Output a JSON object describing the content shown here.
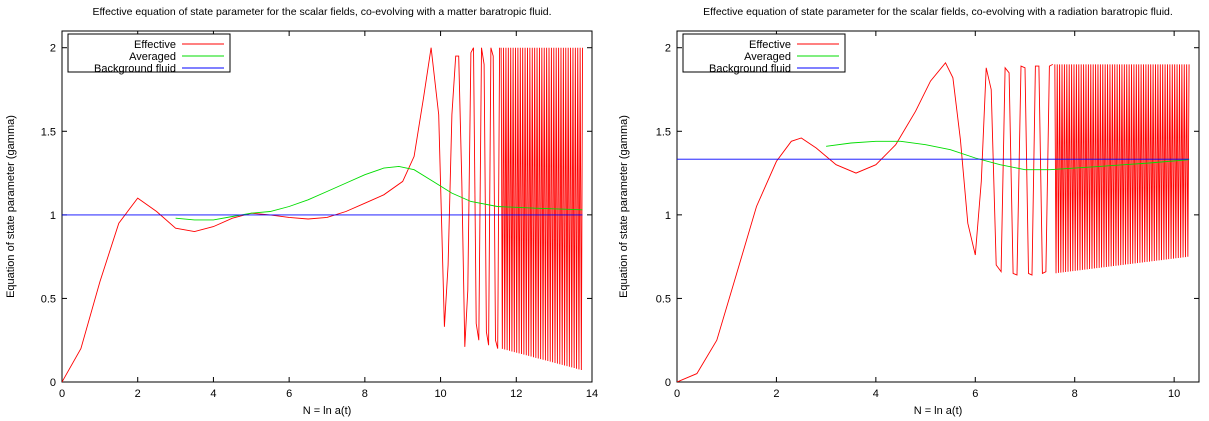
{
  "figure": {
    "panels": [
      {
        "chart_data": {
          "type": "line",
          "title": "Effective equation of state parameter for the scalar fields, co-evolving with a matter baratropic fluid.",
          "xlabel": "N = ln a(t)",
          "ylabel": "Equation of state parameter (gamma)",
          "xlim": [
            0,
            14
          ],
          "ylim": [
            0,
            2.1
          ],
          "xticks": [
            0,
            2,
            4,
            6,
            8,
            10,
            12,
            14
          ],
          "yticks": [
            0,
            0.5,
            1,
            1.5,
            2
          ],
          "xtick_labels": [
            "0",
            "2",
            "4",
            "6",
            "8",
            "10",
            "12",
            "14"
          ],
          "ytick_labels": [
            "0",
            "0.5",
            "1",
            "1.5",
            "2"
          ],
          "grid": false,
          "legend": "top-left",
          "series": [
            {
              "name": "Effective",
              "color": "#ff0000",
              "x": [
                0,
                0.5,
                1,
                1.5,
                2,
                2.5,
                3,
                3.5,
                4,
                4.5,
                5,
                5.5,
                6,
                6.5,
                7,
                7.5,
                8,
                8.5,
                9,
                9.3,
                9.55,
                9.75,
                9.95,
                10.1,
                10.2,
                10.3,
                10.4,
                10.48,
                10.56,
                10.64,
                10.72,
                10.8,
                10.87,
                10.94,
                11.01,
                11.08,
                11.15,
                11.21,
                11.27,
                11.33,
                11.39,
                11.45,
                11.51,
                11.56
              ],
              "y": [
                0,
                0.2,
                0.6,
                0.95,
                1.1,
                1.02,
                0.92,
                0.9,
                0.93,
                0.98,
                1.01,
                1.0,
                0.985,
                0.975,
                0.985,
                1.02,
                1.07,
                1.12,
                1.2,
                1.35,
                1.7,
                2.0,
                1.6,
                0.33,
                0.7,
                1.6,
                1.95,
                1.95,
                1.2,
                0.21,
                0.55,
                1.97,
                2.0,
                0.35,
                0.25,
                2.0,
                1.9,
                0.3,
                0.22,
                2.0,
                1.95,
                0.25,
                0.2,
                2.0
              ],
              "envelope": {
                "x_start": 11.6,
                "x_end": 13.75,
                "upper": [
                  2.0,
                  2.0
                ],
                "lower": [
                  0.2,
                  0.07
                ]
              }
            },
            {
              "name": "Averaged",
              "color": "#00dd00",
              "x": [
                3.0,
                3.5,
                4,
                4.5,
                5,
                5.5,
                6,
                6.5,
                7,
                7.5,
                8,
                8.5,
                8.9,
                9.3,
                9.8,
                10.3,
                10.8,
                11.5,
                12.5,
                13.75
              ],
              "y": [
                0.98,
                0.97,
                0.97,
                0.99,
                1.01,
                1.02,
                1.05,
                1.09,
                1.14,
                1.19,
                1.24,
                1.28,
                1.29,
                1.27,
                1.2,
                1.13,
                1.08,
                1.05,
                1.04,
                1.03
              ]
            },
            {
              "name": "Background fluid",
              "color": "#0000ff",
              "x": [
                0,
                13.75
              ],
              "y": [
                1.0,
                1.0
              ]
            }
          ]
        }
      },
      {
        "chart_data": {
          "type": "line",
          "title": "Effective equation of state parameter for the scalar fields, co-evolving with a radiation baratropic fluid.",
          "xlabel": "N = ln a(t)",
          "ylabel": "Equation of state parameter (gamma)",
          "xlim": [
            0,
            10.5
          ],
          "ylim": [
            0,
            2.1
          ],
          "xticks": [
            0,
            2,
            4,
            6,
            8,
            10
          ],
          "yticks": [
            0,
            0.5,
            1,
            1.5,
            2
          ],
          "xtick_labels": [
            "0",
            "2",
            "4",
            "6",
            "8",
            "10"
          ],
          "ytick_labels": [
            "0",
            "0.5",
            "1",
            "1.5",
            "2"
          ],
          "grid": false,
          "legend": "top-left",
          "series": [
            {
              "name": "Effective",
              "color": "#ff0000",
              "x": [
                0,
                0.4,
                0.8,
                1.2,
                1.6,
                2.0,
                2.3,
                2.5,
                2.8,
                3.2,
                3.6,
                4.0,
                4.4,
                4.8,
                5.1,
                5.4,
                5.55,
                5.7,
                5.85,
                6.0,
                6.12,
                6.22,
                6.32,
                6.42,
                6.52,
                6.6,
                6.68,
                6.76,
                6.84,
                6.92,
                7.0,
                7.07,
                7.14,
                7.21,
                7.28,
                7.35,
                7.42,
                7.49,
                7.56
              ],
              "y": [
                0,
                0.05,
                0.25,
                0.65,
                1.05,
                1.32,
                1.44,
                1.46,
                1.4,
                1.3,
                1.25,
                1.3,
                1.42,
                1.62,
                1.8,
                1.91,
                1.82,
                1.45,
                0.95,
                0.76,
                1.2,
                1.88,
                1.75,
                0.7,
                0.66,
                1.88,
                1.85,
                0.65,
                0.64,
                1.89,
                1.88,
                0.65,
                0.64,
                1.89,
                1.89,
                0.65,
                0.66,
                1.89,
                1.9
              ],
              "envelope": {
                "x_start": 7.6,
                "x_end": 10.3,
                "upper": [
                  1.9,
                  1.9
                ],
                "lower": [
                  0.65,
                  0.75
                ]
              }
            },
            {
              "name": "Averaged",
              "color": "#00dd00",
              "x": [
                3.0,
                3.5,
                4.0,
                4.5,
                5.0,
                5.5,
                6.0,
                6.5,
                7.0,
                7.5,
                8.0,
                8.5,
                9.0,
                9.5,
                10.3
              ],
              "y": [
                1.41,
                1.43,
                1.44,
                1.44,
                1.42,
                1.39,
                1.34,
                1.3,
                1.27,
                1.27,
                1.28,
                1.29,
                1.3,
                1.31,
                1.33
              ]
            },
            {
              "name": "Background fluid",
              "color": "#0000ff",
              "x": [
                0,
                10.3
              ],
              "y": [
                1.333,
                1.333
              ]
            }
          ]
        }
      }
    ]
  }
}
